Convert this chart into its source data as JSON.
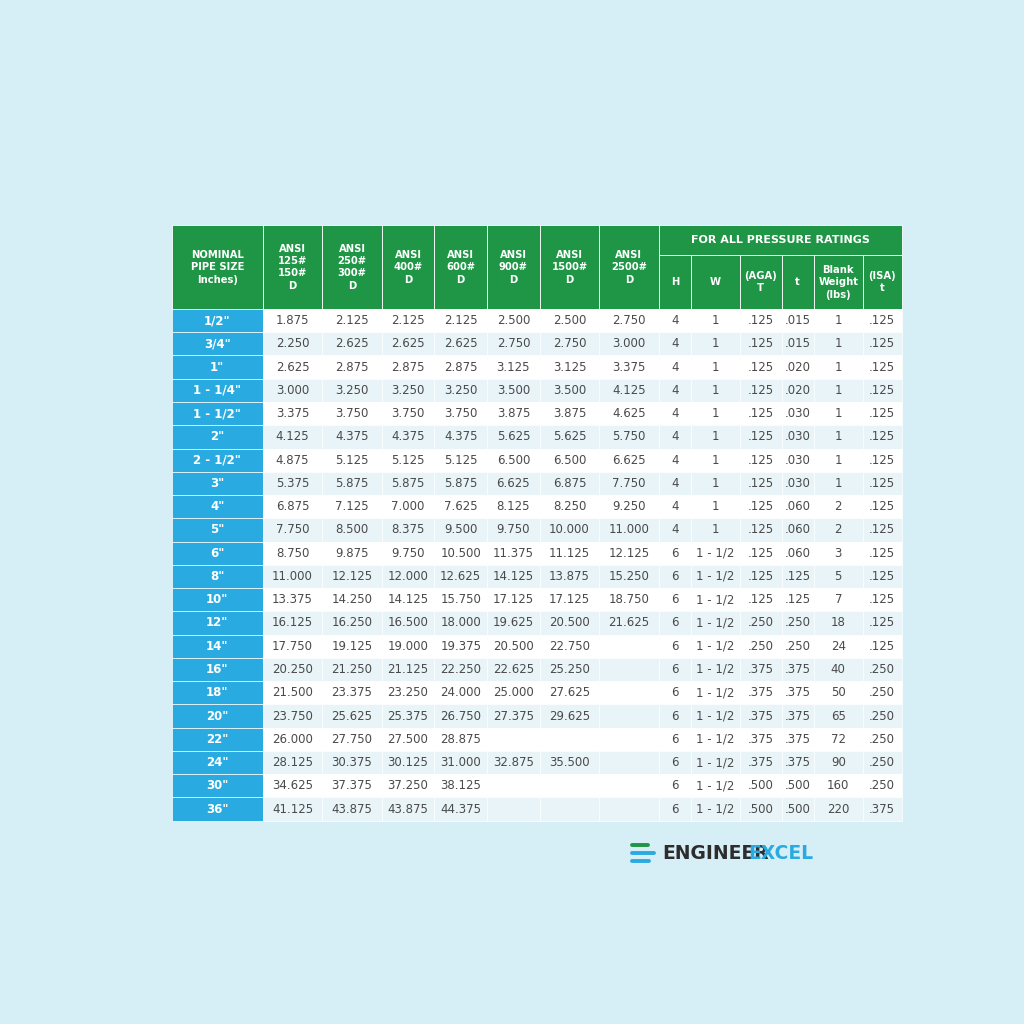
{
  "background_color": "#d6eef5",
  "header_green": "#1e9645",
  "row_blue": "#29abe2",
  "row_white": "#ffffff",
  "row_alt": "#e8f4f8",
  "text_white": "#ffffff",
  "text_dark": "#4a4a4a",
  "for_all_pressure": "FOR ALL PRESSURE RATINGS",
  "header_labels": [
    "NOMINAL\nPIPE SIZE\nInches)",
    "ANSI\n125#\n150#\nD",
    "ANSI\n250#\n300#\nD",
    "ANSI\n400#\nD",
    "ANSI\n600#\nD",
    "ANSI\n900#\nD",
    "ANSI\n1500#\nD",
    "ANSI\n2500#\nD",
    "H",
    "W",
    "(AGA)\nT",
    "t",
    "Blank\nWeight\n(lbs)",
    "(ISA)\nt"
  ],
  "col_widths_rel": [
    1.35,
    0.88,
    0.88,
    0.78,
    0.78,
    0.78,
    0.88,
    0.88,
    0.48,
    0.72,
    0.62,
    0.48,
    0.72,
    0.58
  ],
  "rows": [
    [
      "1/2\"",
      "1.875",
      "2.125",
      "2.125",
      "2.125",
      "2.500",
      "2.500",
      "2.750",
      "4",
      "1",
      ".125",
      ".015",
      "1",
      ".125"
    ],
    [
      "3/4\"",
      "2.250",
      "2.625",
      "2.625",
      "2.625",
      "2.750",
      "2.750",
      "3.000",
      "4",
      "1",
      ".125",
      ".015",
      "1",
      ".125"
    ],
    [
      "1\"",
      "2.625",
      "2.875",
      "2.875",
      "2.875",
      "3.125",
      "3.125",
      "3.375",
      "4",
      "1",
      ".125",
      ".020",
      "1",
      ".125"
    ],
    [
      "1 - 1/4\"",
      "3.000",
      "3.250",
      "3.250",
      "3.250",
      "3.500",
      "3.500",
      "4.125",
      "4",
      "1",
      ".125",
      ".020",
      "1",
      ".125"
    ],
    [
      "1 - 1/2\"",
      "3.375",
      "3.750",
      "3.750",
      "3.750",
      "3.875",
      "3.875",
      "4.625",
      "4",
      "1",
      ".125",
      ".030",
      "1",
      ".125"
    ],
    [
      "2\"",
      "4.125",
      "4.375",
      "4.375",
      "4.375",
      "5.625",
      "5.625",
      "5.750",
      "4",
      "1",
      ".125",
      ".030",
      "1",
      ".125"
    ],
    [
      "2 - 1/2\"",
      "4.875",
      "5.125",
      "5.125",
      "5.125",
      "6.500",
      "6.500",
      "6.625",
      "4",
      "1",
      ".125",
      ".030",
      "1",
      ".125"
    ],
    [
      "3\"",
      "5.375",
      "5.875",
      "5.875",
      "5.875",
      "6.625",
      "6.875",
      "7.750",
      "4",
      "1",
      ".125",
      ".030",
      "1",
      ".125"
    ],
    [
      "4\"",
      "6.875",
      "7.125",
      "7.000",
      "7.625",
      "8.125",
      "8.250",
      "9.250",
      "4",
      "1",
      ".125",
      ".060",
      "2",
      ".125"
    ],
    [
      "5\"",
      "7.750",
      "8.500",
      "8.375",
      "9.500",
      "9.750",
      "10.000",
      "11.000",
      "4",
      "1",
      ".125",
      ".060",
      "2",
      ".125"
    ],
    [
      "6\"",
      "8.750",
      "9.875",
      "9.750",
      "10.500",
      "11.375",
      "11.125",
      "12.125",
      "6",
      "1 - 1/2",
      ".125",
      ".060",
      "3",
      ".125"
    ],
    [
      "8\"",
      "11.000",
      "12.125",
      "12.000",
      "12.625",
      "14.125",
      "13.875",
      "15.250",
      "6",
      "1 - 1/2",
      ".125",
      ".125",
      "5",
      ".125"
    ],
    [
      "10\"",
      "13.375",
      "14.250",
      "14.125",
      "15.750",
      "17.125",
      "17.125",
      "18.750",
      "6",
      "1 - 1/2",
      ".125",
      ".125",
      "7",
      ".125"
    ],
    [
      "12\"",
      "16.125",
      "16.250",
      "16.500",
      "18.000",
      "19.625",
      "20.500",
      "21.625",
      "6",
      "1 - 1/2",
      ".250",
      ".250",
      "18",
      ".125"
    ],
    [
      "14\"",
      "17.750",
      "19.125",
      "19.000",
      "19.375",
      "20.500",
      "22.750",
      "",
      "6",
      "1 - 1/2",
      ".250",
      ".250",
      "24",
      ".125"
    ],
    [
      "16\"",
      "20.250",
      "21.250",
      "21.125",
      "22.250",
      "22.625",
      "25.250",
      "",
      "6",
      "1 - 1/2",
      ".375",
      ".375",
      "40",
      ".250"
    ],
    [
      "18\"",
      "21.500",
      "23.375",
      "23.250",
      "24.000",
      "25.000",
      "27.625",
      "",
      "6",
      "1 - 1/2",
      ".375",
      ".375",
      "50",
      ".250"
    ],
    [
      "20\"",
      "23.750",
      "25.625",
      "25.375",
      "26.750",
      "27.375",
      "29.625",
      "",
      "6",
      "1 - 1/2",
      ".375",
      ".375",
      "65",
      ".250"
    ],
    [
      "22\"",
      "26.000",
      "27.750",
      "27.500",
      "28.875",
      "",
      "",
      "",
      "6",
      "1 - 1/2",
      ".375",
      ".375",
      "72",
      ".250"
    ],
    [
      "24\"",
      "28.125",
      "30.375",
      "30.125",
      "31.000",
      "32.875",
      "35.500",
      "",
      "6",
      "1 - 1/2",
      ".375",
      ".375",
      "90",
      ".250"
    ],
    [
      "30\"",
      "34.625",
      "37.375",
      "37.250",
      "38.125",
      "",
      "",
      "",
      "6",
      "1 - 1/2",
      ".500",
      ".500",
      "160",
      ".250"
    ],
    [
      "36\"",
      "41.125",
      "43.875",
      "43.875",
      "44.375",
      "",
      "",
      "",
      "6",
      "1 - 1/2",
      ".500",
      ".500",
      "220",
      ".375"
    ]
  ]
}
